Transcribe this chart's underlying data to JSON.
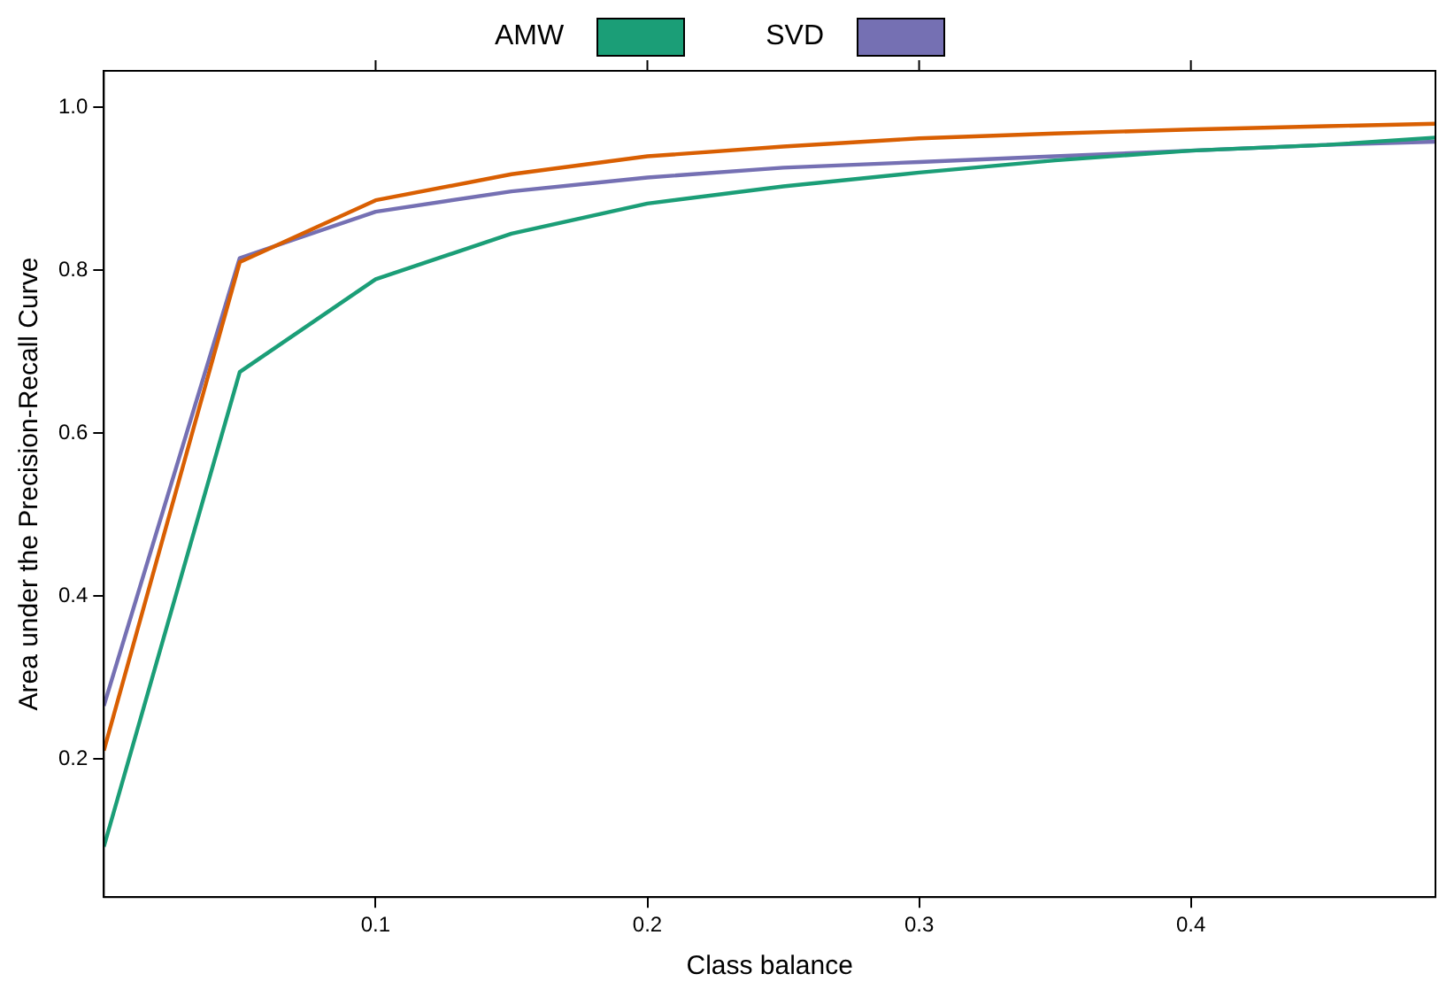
{
  "chart_data": {
    "type": "line",
    "xlabel": "Class balance",
    "ylabel": "Area under the Precision-Recall Curve",
    "x": [
      0,
      0.05,
      0.1,
      0.15,
      0.2,
      0.25,
      0.3,
      0.35,
      0.4,
      0.45,
      0.49
    ],
    "series": [
      {
        "name": "AMW",
        "color": "#1b9e77",
        "values": [
          0.092,
          0.675,
          0.789,
          0.845,
          0.882,
          0.903,
          0.92,
          0.935,
          0.947,
          0.954,
          0.963
        ]
      },
      {
        "color": "#d95f02",
        "values": [
          0.21,
          0.81,
          0.886,
          0.918,
          0.94,
          0.952,
          0.962,
          0.968,
          0.973,
          0.977,
          0.98
        ]
      },
      {
        "name": "SVD",
        "color": "#7570b3",
        "values": [
          0.265,
          0.815,
          0.872,
          0.897,
          0.914,
          0.926,
          0.933,
          0.94,
          0.947,
          0.954,
          0.958
        ]
      }
    ],
    "xlim": [
      0,
      0.49
    ],
    "xticks": [
      0.1,
      0.2,
      0.3,
      0.4
    ],
    "ylim": [
      0.03,
      1.045
    ],
    "yticks": [
      {
        "value": 0.2,
        "label": "0.2"
      },
      {
        "value": 0.4,
        "label": "0.4"
      },
      {
        "value": 0.6,
        "label": "0.6"
      },
      {
        "value": 0.8,
        "label": "0.8"
      },
      {
        "value": 1.0,
        "label": "1.0"
      }
    ],
    "grid": false,
    "legend": "top",
    "marker": "none",
    "line_style": "solid"
  }
}
